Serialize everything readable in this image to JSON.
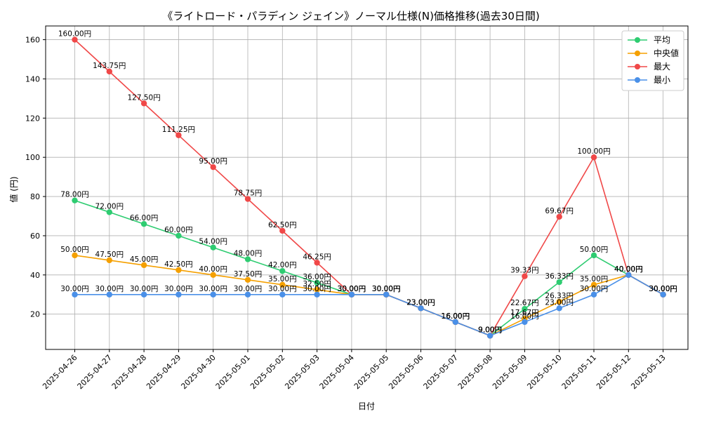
{
  "chart_data": {
    "type": "line",
    "title": "《ライトロード・パラディン ジェイン》ノーマル仕様(N)価格推移(過去30日間)",
    "xlabel": "日付",
    "ylabel": "値 (円)",
    "ylim": [
      2,
      167
    ],
    "yticks": [
      20,
      40,
      60,
      80,
      100,
      120,
      140,
      160
    ],
    "grid": true,
    "legend_position": "top-right",
    "label_suffix": "円",
    "categories": [
      "2025-04-26",
      "2025-04-27",
      "2025-04-28",
      "2025-04-29",
      "2025-04-30",
      "2025-05-01",
      "2025-05-02",
      "2025-05-03",
      "2025-05-04",
      "2025-05-05",
      "2025-05-06",
      "2025-05-07",
      "2025-05-08",
      "2025-05-09",
      "2025-05-10",
      "2025-05-11",
      "2025-05-12",
      "2025-05-13"
    ],
    "series": [
      {
        "name": "平均",
        "color": "#2ecc71",
        "values": [
          78,
          72,
          66,
          60,
          54,
          48,
          42,
          36,
          30,
          30,
          23,
          16,
          9,
          22.67,
          36.33,
          50,
          40,
          30
        ]
      },
      {
        "name": "中央値",
        "color": "#f5a000",
        "values": [
          50,
          47.5,
          45,
          42.5,
          40,
          37.5,
          35,
          32.5,
          30,
          30,
          23,
          16,
          9,
          17.67,
          26.33,
          35,
          40,
          30
        ]
      },
      {
        "name": "最大",
        "color": "#f04848",
        "values": [
          160,
          143.75,
          127.5,
          111.25,
          95,
          78.75,
          62.5,
          46.25,
          30,
          30,
          23,
          16,
          9,
          39.33,
          69.67,
          100,
          40,
          30
        ]
      },
      {
        "name": "最小",
        "color": "#4a90e8",
        "values": [
          30,
          30,
          30,
          30,
          30,
          30,
          30,
          30,
          30,
          30,
          23,
          16,
          9,
          16,
          23,
          30,
          40,
          30
        ]
      }
    ]
  }
}
